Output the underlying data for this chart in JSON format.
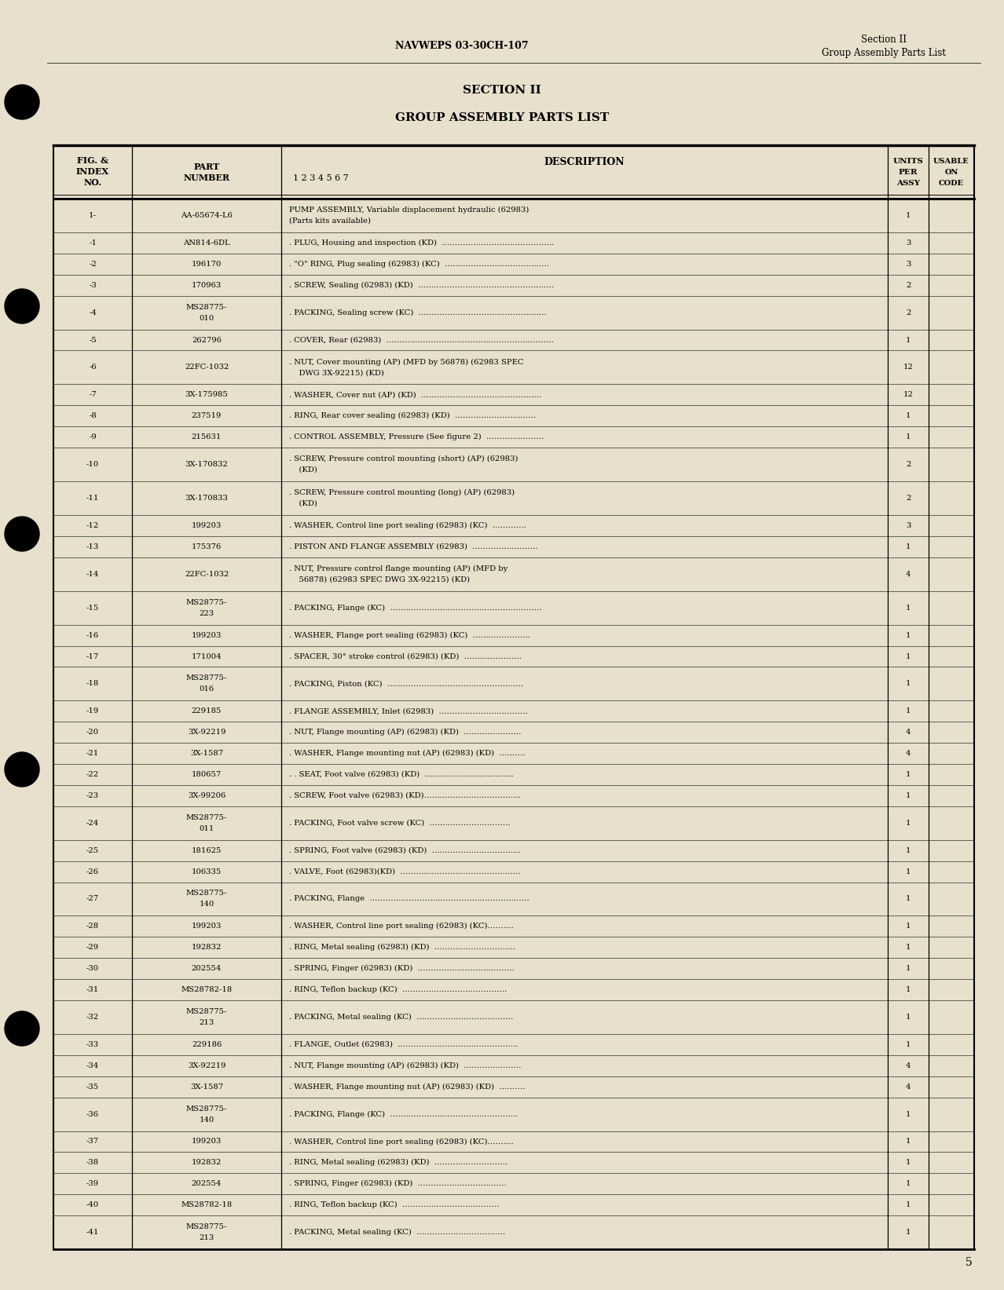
{
  "page_color": "#e8e0cc",
  "header_left": "NAVWEPS 03-30CH-107",
  "header_right_line1": "Section II",
  "header_right_line2": "Group Assembly Parts List",
  "section_title": "SECTION II",
  "section_subtitle": "GROUP ASSEMBLY PARTS LIST",
  "rows": [
    {
      "fig": "1-",
      "part": "AA-65674-L6",
      "desc": "PUMP ASSEMBLY, Variable displacement hydraulic (62983)\n(Parts kits available)",
      "units": "1",
      "usable": "",
      "tall": true
    },
    {
      "fig": "-1",
      "part": "AN814-6DL",
      "desc": ". PLUG, Housing and inspection (KD)  …………………………………….",
      "units": "3",
      "usable": "",
      "tall": false
    },
    {
      "fig": "-2",
      "part": "196170",
      "desc": ". \"O\" RING, Plug sealing (62983) (KC)  ………………………………….",
      "units": "3",
      "usable": "",
      "tall": false
    },
    {
      "fig": "-3",
      "part": "170963",
      "desc": ". SCREW, Sealing (62983) (KD)  …………………………………………….",
      "units": "2",
      "usable": "",
      "tall": false
    },
    {
      "fig": "-4",
      "part": "MS28775-\n010",
      "desc": ". PACKING, Sealing screw (KC)  ………………………………………….",
      "units": "2",
      "usable": "",
      "tall": true
    },
    {
      "fig": "-5",
      "part": "262796",
      "desc": ". COVER, Rear (62983)  ……………………………………………………….",
      "units": "1",
      "usable": "",
      "tall": false
    },
    {
      "fig": "-6",
      "part": "22FC-1032",
      "desc": ". NUT, Cover mounting (AP) (MFD by 56878) (62983 SPEC\n    DWG 3X-92215) (KD)",
      "units": "12",
      "usable": "",
      "tall": true
    },
    {
      "fig": "-7",
      "part": "3X-175985",
      "desc": ". WASHER, Cover nut (AP) (KD)  ……………………………………….",
      "units": "12",
      "usable": "",
      "tall": false
    },
    {
      "fig": "-8",
      "part": "237519",
      "desc": ". RING, Rear cover sealing (62983) (KD)  ………………………….",
      "units": "1",
      "usable": "",
      "tall": false
    },
    {
      "fig": "-9",
      "part": "215631",
      "desc": ". CONTROL ASSEMBLY, Pressure (See figure 2)  ………………….",
      "units": "1",
      "usable": "",
      "tall": false
    },
    {
      "fig": "-10",
      "part": "3X-170832",
      "desc": ". SCREW, Pressure control mounting (short) (AP) (62983)\n    (KD)",
      "units": "2",
      "usable": "",
      "tall": true
    },
    {
      "fig": "-11",
      "part": "3X-170833",
      "desc": ". SCREW, Pressure control mounting (long) (AP) (62983)\n    (KD)",
      "units": "2",
      "usable": "",
      "tall": true
    },
    {
      "fig": "-12",
      "part": "199203",
      "desc": ". WASHER, Control line port sealing (62983) (KC)  ………….",
      "units": "3",
      "usable": "",
      "tall": false
    },
    {
      "fig": "-13",
      "part": "175376",
      "desc": ". PISTON AND FLANGE ASSEMBLY (62983)  …………………….",
      "units": "1",
      "usable": "",
      "tall": false
    },
    {
      "fig": "-14",
      "part": "22FC-1032",
      "desc": ". NUT, Pressure control flange mounting (AP) (MFD by\n    56878) (62983 SPEC DWG 3X-92215) (KD)",
      "units": "4",
      "usable": "",
      "tall": true
    },
    {
      "fig": "-15",
      "part": "MS28775-\n223",
      "desc": ". PACKING, Flange (KC)  ………………………………………………….",
      "units": "1",
      "usable": "",
      "tall": true
    },
    {
      "fig": "-16",
      "part": "199203",
      "desc": ". WASHER, Flange port sealing (62983) (KC)  ………………….",
      "units": "1",
      "usable": "",
      "tall": false
    },
    {
      "fig": "-17",
      "part": "171004",
      "desc": ". SPACER, 30° stroke control (62983) (KD)  ………………….",
      "units": "1",
      "usable": "",
      "tall": false
    },
    {
      "fig": "-18",
      "part": "MS28775-\n016",
      "desc": ". PACKING, Piston (KC)  …………………………………………….",
      "units": "1",
      "usable": "",
      "tall": true
    },
    {
      "fig": "-19",
      "part": "229185",
      "desc": ". FLANGE ASSEMBLY, Inlet (62983)  …………………………….",
      "units": "1",
      "usable": "",
      "tall": false
    },
    {
      "fig": "-20",
      "part": "3X-92219",
      "desc": ". NUT, Flange mounting (AP) (62983) (KD)  ………………….",
      "units": "4",
      "usable": "",
      "tall": false
    },
    {
      "fig": "-21",
      "part": "3X-1587",
      "desc": ". WASHER, Flange mounting nut (AP) (62983) (KD)  ……….",
      "units": "4",
      "usable": "",
      "tall": false
    },
    {
      "fig": "-22",
      "part": "180657",
      "desc": ". . SEAT, Foot valve (62983) (KD)  …………………………….",
      "units": "1",
      "usable": "",
      "tall": false
    },
    {
      "fig": "-23",
      "part": "3X-99206",
      "desc": ". SCREW, Foot valve (62983) (KD)……………………………….",
      "units": "1",
      "usable": "",
      "tall": false
    },
    {
      "fig": "-24",
      "part": "MS28775-\n011",
      "desc": ". PACKING, Foot valve screw (KC)  ………………………….",
      "units": "1",
      "usable": "",
      "tall": true
    },
    {
      "fig": "-25",
      "part": "181625",
      "desc": ". SPRING, Foot valve (62983) (KD)  …………………………….",
      "units": "1",
      "usable": "",
      "tall": false
    },
    {
      "fig": "-26",
      "part": "106335",
      "desc": ". VALVE, Foot (62983)(KD)  ……………………………………….",
      "units": "1",
      "usable": "",
      "tall": false
    },
    {
      "fig": "-27",
      "part": "MS28775-\n140",
      "desc": ". PACKING, Flange  …………………………………………………….",
      "units": "1",
      "usable": "",
      "tall": true
    },
    {
      "fig": "-28",
      "part": "199203",
      "desc": ". WASHER, Control line port sealing (62983) (KC)……….",
      "units": "1",
      "usable": "",
      "tall": false
    },
    {
      "fig": "-29",
      "part": "192832",
      "desc": ". RING, Metal sealing (62983) (KD)  ………………………….",
      "units": "1",
      "usable": "",
      "tall": false
    },
    {
      "fig": "-30",
      "part": "202554",
      "desc": ". SPRING, Finger (62983) (KD)  ……………………………….",
      "units": "1",
      "usable": "",
      "tall": false
    },
    {
      "fig": "-31",
      "part": "MS28782-18",
      "desc": ". RING, Teflon backup (KC)  ………………………………….",
      "units": "1",
      "usable": "",
      "tall": false
    },
    {
      "fig": "-32",
      "part": "MS28775-\n213",
      "desc": ". PACKING, Metal sealing (KC)  ……………………………….",
      "units": "1",
      "usable": "",
      "tall": true
    },
    {
      "fig": "-33",
      "part": "229186",
      "desc": ". FLANGE, Outlet (62983)  ……………………………………….",
      "units": "1",
      "usable": "",
      "tall": false
    },
    {
      "fig": "-34",
      "part": "3X-92219",
      "desc": ". NUT, Flange mounting (AP) (62983) (KD)  ………………….",
      "units": "4",
      "usable": "",
      "tall": false
    },
    {
      "fig": "-35",
      "part": "3X-1587",
      "desc": ". WASHER, Flange mounting nut (AP) (62983) (KD)  ……….",
      "units": "4",
      "usable": "",
      "tall": false
    },
    {
      "fig": "-36",
      "part": "MS28775-\n140",
      "desc": ". PACKING, Flange (KC)  ………………………………………….",
      "units": "1",
      "usable": "",
      "tall": true
    },
    {
      "fig": "-37",
      "part": "199203",
      "desc": ". WASHER, Control line port sealing (62983) (KC)……….",
      "units": "1",
      "usable": "",
      "tall": false
    },
    {
      "fig": "-38",
      "part": "192832",
      "desc": ". RING, Metal sealing (62983) (KD)  ……………………….",
      "units": "1",
      "usable": "",
      "tall": false
    },
    {
      "fig": "-39",
      "part": "202554",
      "desc": ". SPRING, Finger (62983) (KD)  …………………………….",
      "units": "1",
      "usable": "",
      "tall": false
    },
    {
      "fig": "-40",
      "part": "MS28782-18",
      "desc": ". RING, Teflon backup (KC)  ……………………………….",
      "units": "1",
      "usable": "",
      "tall": false
    },
    {
      "fig": "-41",
      "part": "MS28775-\n213",
      "desc": ". PACKING, Metal sealing (KC)  …………………………….",
      "units": "1",
      "usable": "",
      "tall": true
    }
  ],
  "footer_page": "5"
}
